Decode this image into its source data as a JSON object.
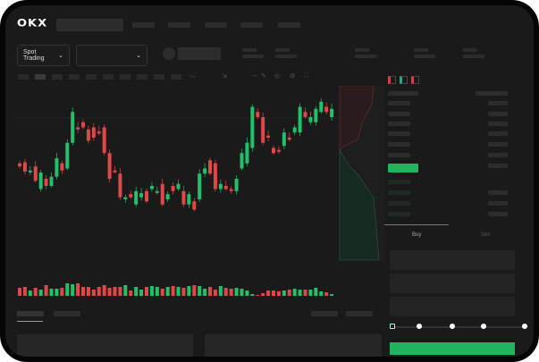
{
  "header": {
    "brand": "OKX"
  },
  "toolbar": {
    "market_selector": "Spot Trading",
    "pair_selector": ""
  },
  "order_panel": {
    "tabs": [
      "Buy",
      "Sell"
    ],
    "active_tab": "Buy",
    "slider_percent": 0,
    "buy_color": "#22b35e"
  },
  "colors": {
    "up": "#22c06a",
    "down": "#e04848",
    "background": "#1a1a1a"
  },
  "chart_data": {
    "type": "candlestick",
    "candles": [
      [
        55,
        52
      ],
      [
        56,
        47
      ],
      [
        47,
        48
      ],
      [
        52,
        38
      ],
      [
        30,
        46
      ],
      [
        40,
        33
      ],
      [
        33,
        42
      ],
      [
        42,
        60
      ],
      [
        55,
        48
      ],
      [
        50,
        75
      ],
      [
        75,
        105
      ],
      [
        90,
        88
      ],
      [
        95,
        90
      ],
      [
        88,
        77
      ],
      [
        90,
        80
      ],
      [
        86,
        84
      ],
      [
        90,
        65
      ],
      [
        65,
        40
      ],
      [
        48,
        47
      ],
      [
        45,
        22
      ],
      [
        20,
        22
      ],
      [
        25,
        22
      ],
      [
        15,
        28
      ],
      [
        22,
        26
      ],
      [
        28,
        18
      ],
      [
        30,
        33
      ],
      [
        28,
        28
      ],
      [
        35,
        15
      ],
      [
        20,
        25
      ],
      [
        33,
        28
      ],
      [
        30,
        35
      ],
      [
        28,
        15
      ],
      [
        15,
        25
      ],
      [
        18,
        10
      ],
      [
        20,
        45
      ],
      [
        45,
        50
      ],
      [
        58,
        45
      ],
      [
        55,
        30
      ],
      [
        30,
        35
      ],
      [
        33,
        30
      ],
      [
        30,
        28
      ],
      [
        28,
        40
      ],
      [
        50,
        65
      ],
      [
        55,
        75
      ],
      [
        70,
        110
      ],
      [
        105,
        100
      ],
      [
        100,
        75
      ],
      [
        82,
        80
      ],
      [
        70,
        65
      ],
      [
        68,
        67
      ],
      [
        72,
        85
      ],
      [
        80,
        78
      ],
      [
        85,
        90
      ],
      [
        85,
        110
      ],
      [
        105,
        100
      ],
      [
        95,
        100
      ],
      [
        95,
        108
      ],
      [
        105,
        115
      ],
      [
        110,
        105
      ],
      [
        100,
        108
      ]
    ],
    "volumes": [
      9,
      10,
      6,
      9,
      7,
      12,
      8,
      8,
      9,
      14,
      13,
      14,
      10,
      10,
      7,
      10,
      12,
      9,
      10,
      10,
      12,
      6,
      10,
      7,
      10,
      11,
      10,
      8,
      10,
      11,
      10,
      9,
      11,
      12,
      11,
      8,
      10,
      7,
      11,
      9,
      8,
      9,
      8,
      6,
      2,
      1,
      3,
      6,
      6,
      5,
      6,
      7,
      8,
      7,
      7,
      7,
      9,
      5,
      4,
      2
    ]
  }
}
